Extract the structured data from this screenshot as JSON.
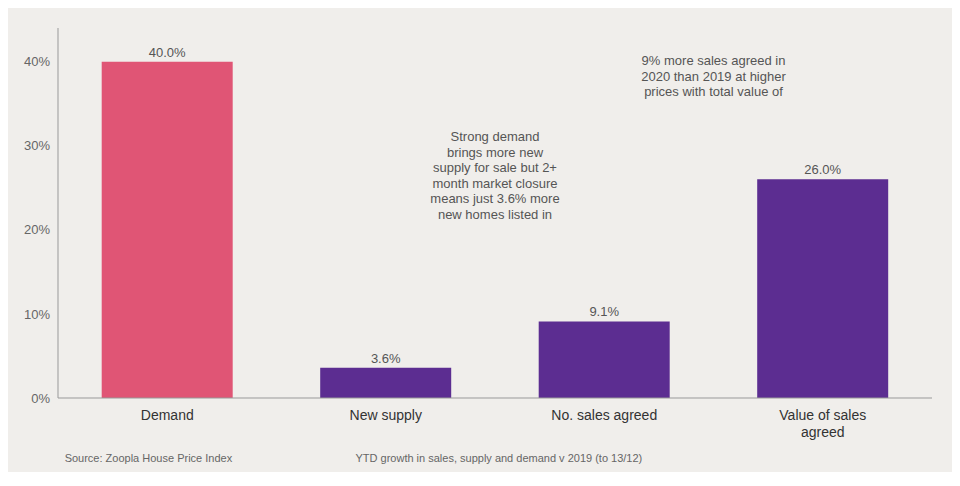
{
  "chart_data": {
    "type": "bar",
    "categories": [
      "Demand",
      "New supply",
      "No. sales agreed",
      "Value of sales\nagreed"
    ],
    "values": [
      40.0,
      3.6,
      9.1,
      26.0
    ],
    "value_labels": [
      "40.0%",
      "3.6%",
      "9.1%",
      "26.0%"
    ],
    "colors": [
      "#e05575",
      "#5c2d91",
      "#5c2d91",
      "#5c2d91"
    ],
    "ylim": [
      0,
      44
    ],
    "yticks": [
      {
        "value": 0,
        "label": "0%"
      },
      {
        "value": 10,
        "label": "10%"
      },
      {
        "value": 20,
        "label": "20%"
      },
      {
        "value": 30,
        "label": "30%"
      },
      {
        "value": 40,
        "label": "40%"
      }
    ],
    "grid": false,
    "data_labels": true,
    "annotations": [
      "Strong demand\nbrings more new\nsupply for sale but 2+\nmonth market closure\nmeans just 3.6% more\nnew homes listed in",
      "9% more sales agreed in\n2020 than 2019 at higher\nprices with total value of",
      "Source: Zoopla House Price Index",
      "YTD growth in sales, supply and demand v 2019 (to 13/12)"
    ]
  }
}
